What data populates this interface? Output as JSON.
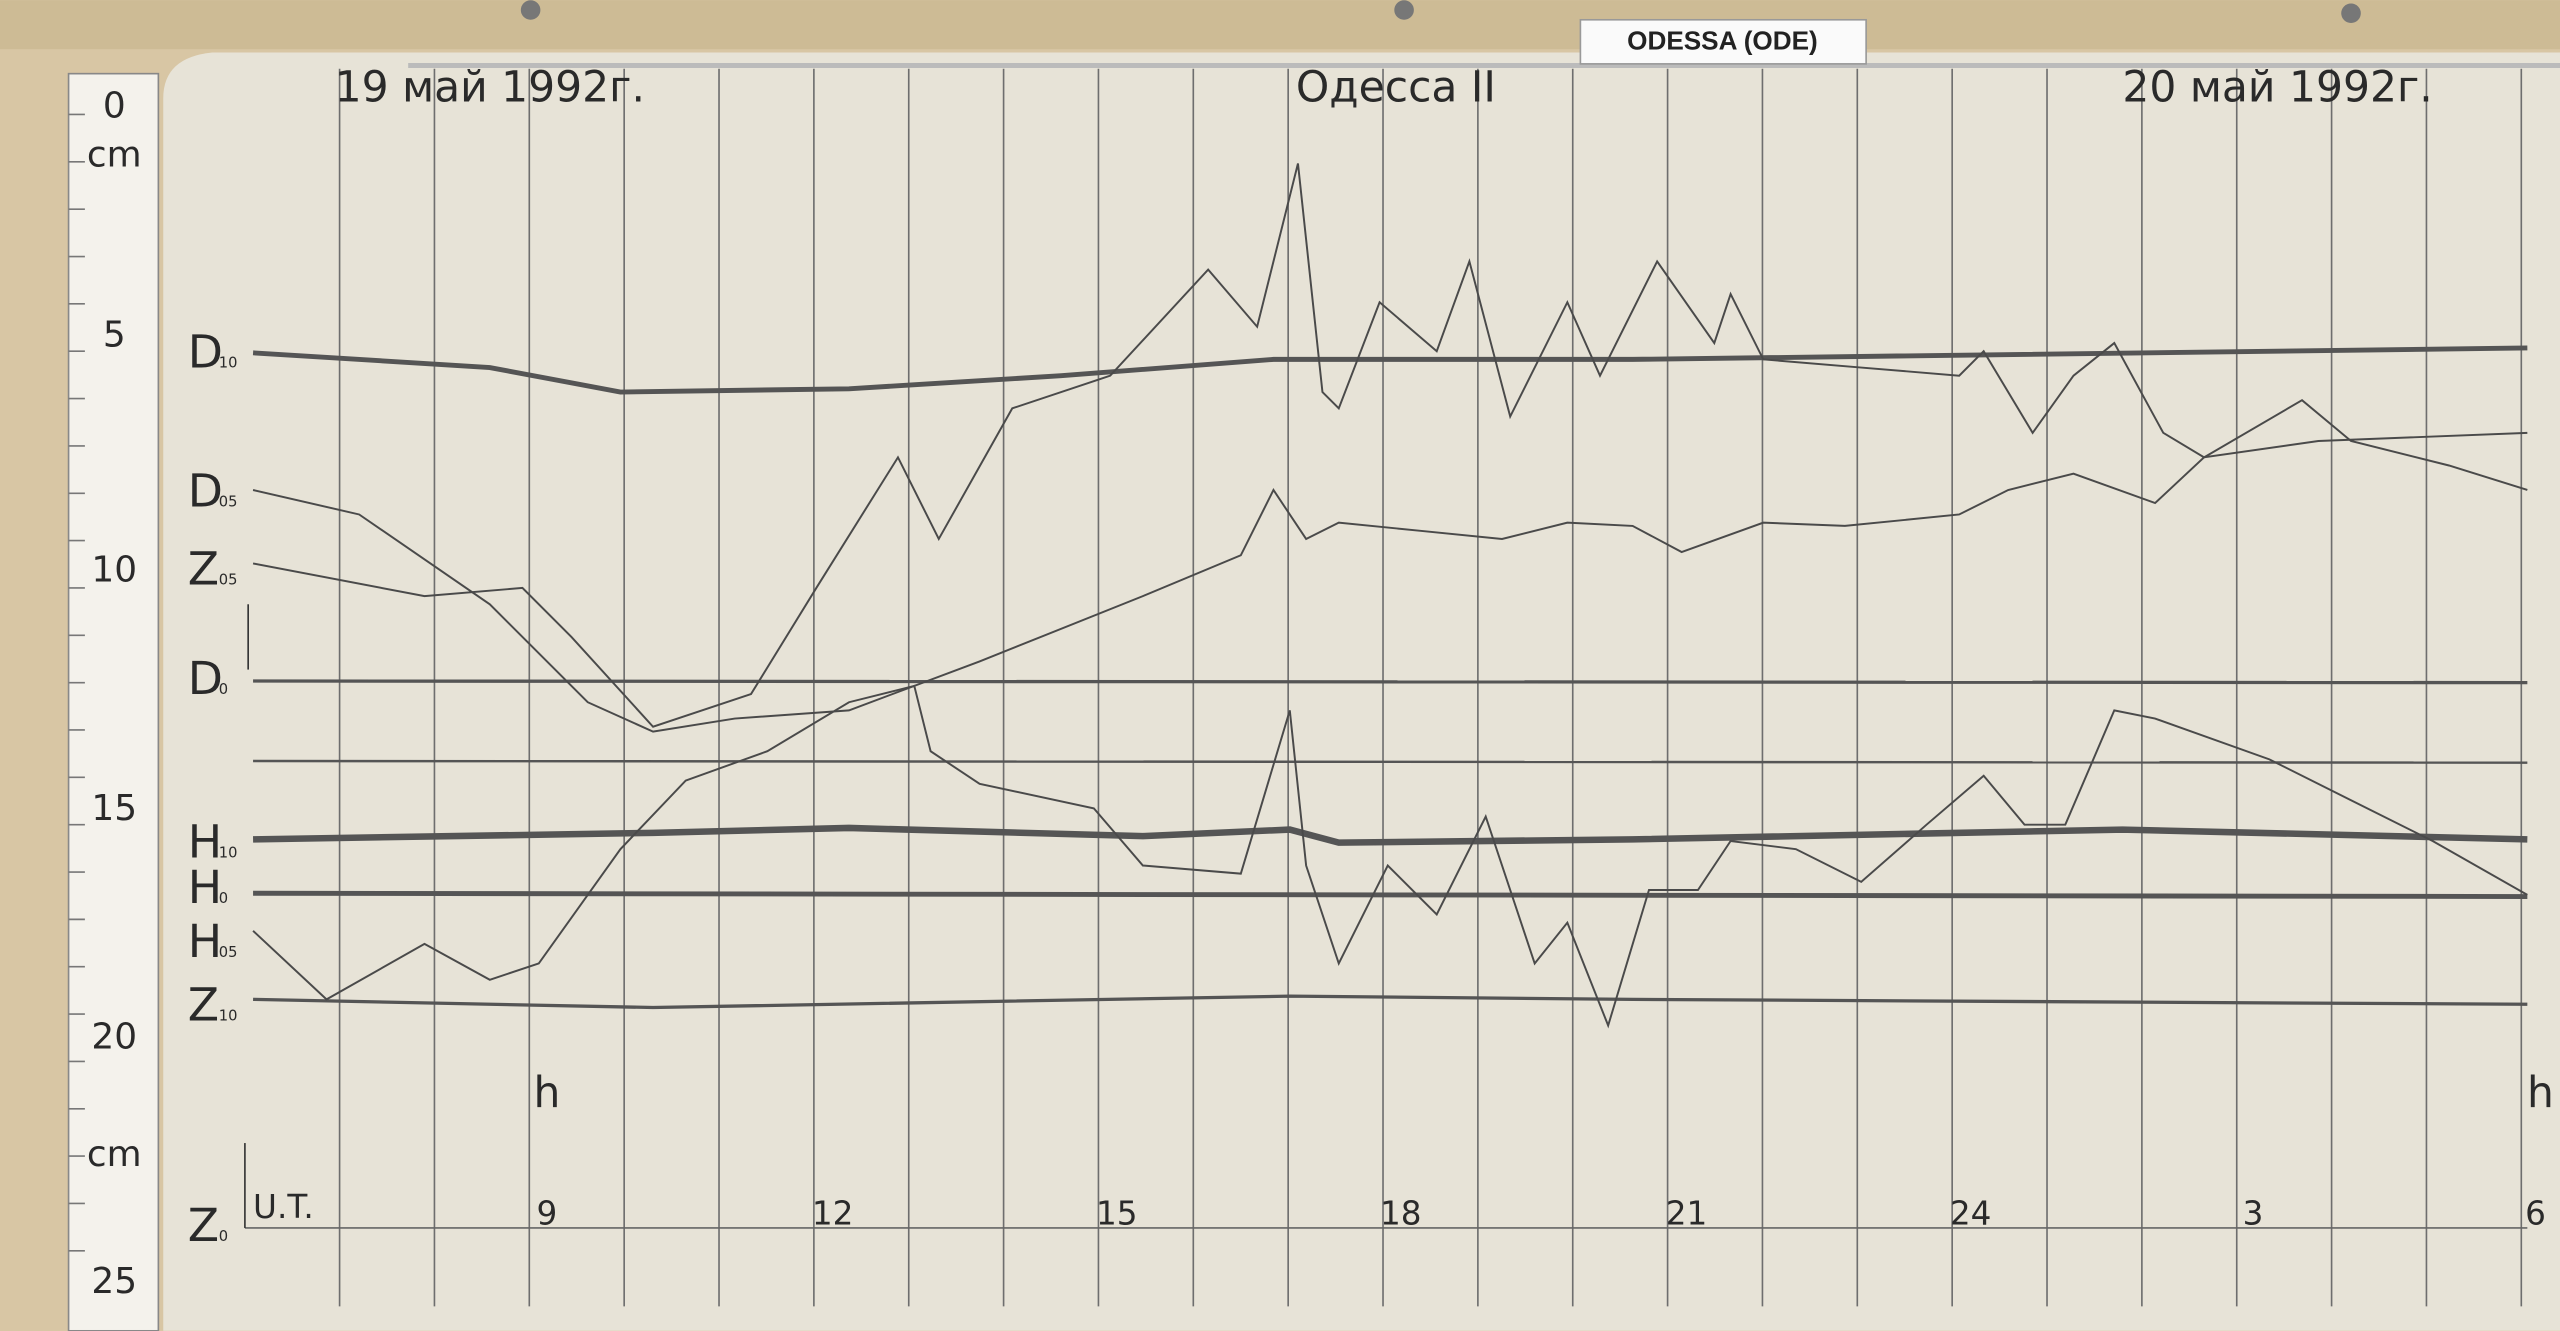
{
  "sign": "ODESSA (ODE)",
  "header": {
    "left": "19 май 1992г.",
    "center": "Одесса II",
    "right": "20 май 1992г."
  },
  "ruler": {
    "marks": [
      "0",
      "cm",
      "5",
      "10",
      "15",
      "20",
      "cm",
      "25"
    ]
  },
  "labels": [
    {
      "base": "D",
      "sub": "10"
    },
    {
      "base": "D",
      "sub": "05"
    },
    {
      "base": "Z",
      "sub": "05"
    },
    {
      "base": "D",
      "sub": "0"
    },
    {
      "base": "H",
      "sub": "10"
    },
    {
      "base": "H",
      "sub": "0"
    },
    {
      "base": "H",
      "sub": "05"
    },
    {
      "base": "Z",
      "sub": "10"
    },
    {
      "base": "Z",
      "sub": "0"
    }
  ],
  "time_axis": {
    "unit_label": "U.T.",
    "hour_marks": [
      "h",
      "h"
    ],
    "ticks": [
      "9",
      "12",
      "15",
      "18",
      "21",
      "24",
      "3",
      "6"
    ]
  }
}
